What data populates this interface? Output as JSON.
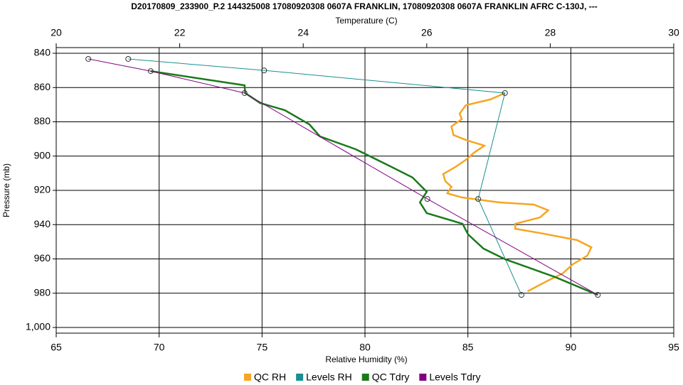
{
  "chart_data": {
    "type": "line",
    "title": "D20170809_233900_P.2 144325008 17080920308 0607A FRANKLIN, 17080920308 0607A FRANKLIN AFRC C-130J, ---",
    "xlabel": "Relative Humidity (%)",
    "x2label": "Temperature (C)",
    "ylabel": "Pressure (mb)",
    "xlim": [
      65,
      95
    ],
    "xticks": [
      65,
      70,
      75,
      80,
      85,
      90,
      95
    ],
    "x2lim": [
      20,
      30
    ],
    "x2ticks": [
      20,
      22,
      24,
      26,
      28,
      30
    ],
    "ylim": [
      840,
      1000
    ],
    "y_inverted": true,
    "yticks": [
      840,
      860,
      880,
      900,
      920,
      940,
      960,
      980,
      {
        "value": 1000,
        "label": "1,000"
      }
    ],
    "grid": true,
    "legend": "bottom",
    "series": [
      {
        "name": "QC RH",
        "color": "#f5a623",
        "axis": "x",
        "markers": false,
        "x": [
          86.8,
          86.1,
          84.9,
          84.6,
          84.7,
          84.2,
          84.3,
          84.9,
          85.8,
          85.3,
          84.9,
          84.4,
          83.8,
          83.9,
          84.2,
          84.0,
          84.7,
          86.5,
          88.2,
          88.9,
          88.5,
          87.3,
          87.3,
          88.5,
          90.3,
          91.0,
          90.8,
          90.1,
          89.6,
          88.9,
          87.9
        ],
        "values": [
          863.2,
          866.9,
          870.3,
          875.2,
          878.5,
          882.7,
          887.7,
          890.6,
          893.9,
          898.0,
          902.2,
          906.3,
          910.5,
          914.6,
          917.9,
          921.7,
          924.1,
          927.0,
          928.3,
          931.6,
          935.8,
          939.5,
          942.4,
          944.9,
          949.0,
          953.2,
          958.1,
          963.1,
          968.5,
          972.6,
          978.9
        ]
      },
      {
        "name": "Levels RH",
        "color": "#1a8f8f",
        "axis": "x",
        "markers": true,
        "x": [
          68.5,
          75.1,
          86.8,
          85.5,
          87.6
        ],
        "values": [
          843.3,
          850.0,
          863.2,
          925.0,
          981.0
        ]
      },
      {
        "name": "QC Tdry",
        "color": "#1a7a1a",
        "axis": "x2",
        "markers": false,
        "x": [
          21.53,
          23.05,
          23.06,
          23.3,
          23.7,
          24.1,
          24.27,
          24.85,
          25.43,
          25.77,
          26.0,
          25.89,
          26.0,
          26.58,
          26.67,
          26.92,
          27.27,
          28.08,
          28.77
        ],
        "values": [
          850.4,
          858.7,
          863.2,
          869.0,
          873.2,
          881.5,
          888.5,
          896.0,
          906.3,
          912.5,
          920.8,
          927.0,
          933.3,
          939.5,
          945.7,
          954.0,
          960.2,
          970.6,
          981.0
        ]
      },
      {
        "name": "Levels Tdry",
        "color": "#800080",
        "axis": "x2",
        "markers": true,
        "x": [
          20.52,
          21.53,
          23.05,
          26.01,
          28.77
        ],
        "values": [
          843.3,
          850.4,
          863.2,
          925.0,
          981.0
        ]
      }
    ]
  }
}
